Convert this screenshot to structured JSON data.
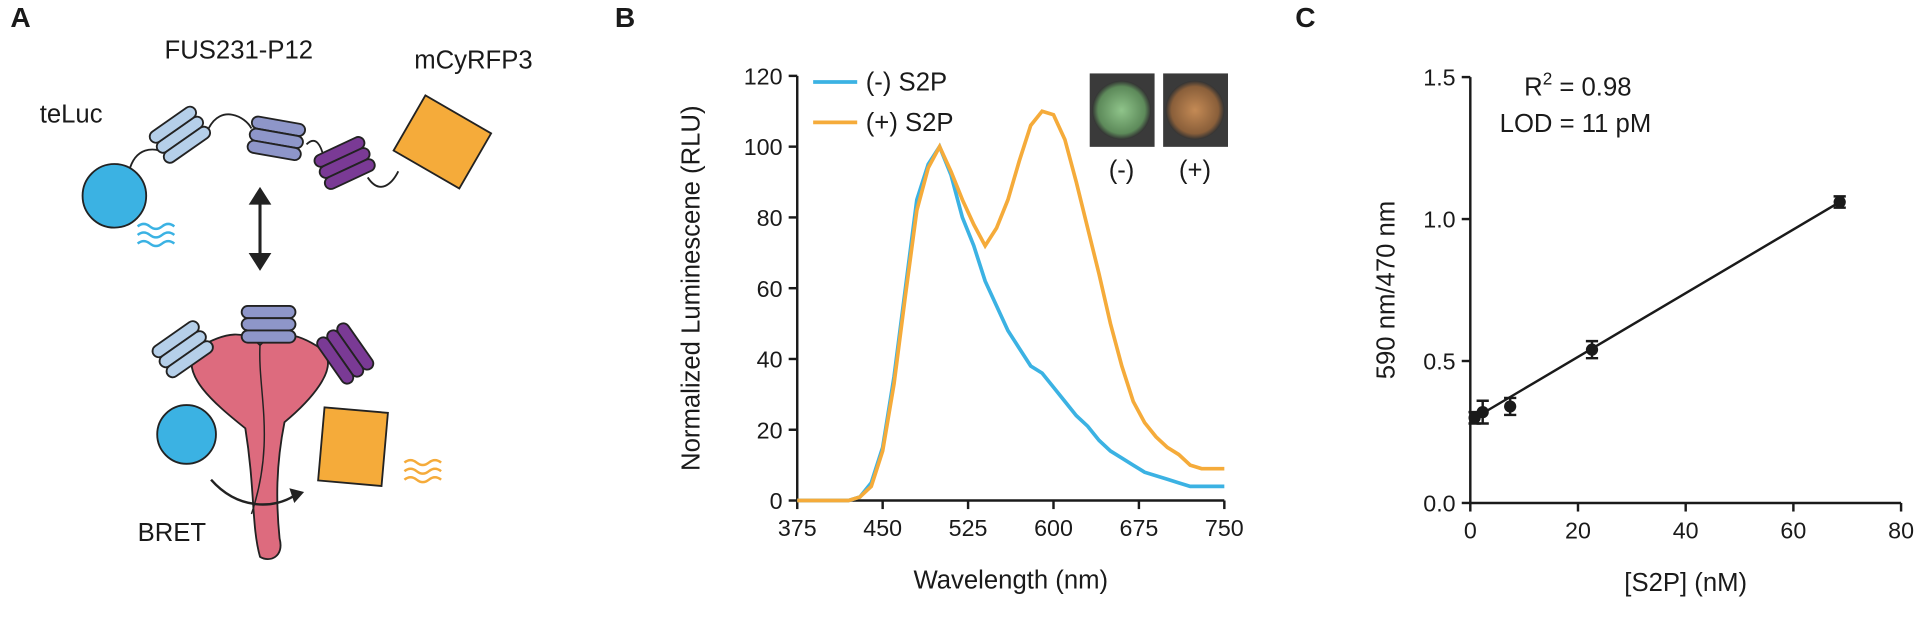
{
  "diagram": {
    "panel_label": "A",
    "labels": [
      "FUS231-P12",
      "mCyRFP3",
      "teLuc",
      "BRET"
    ]
  },
  "chart_data": [
    {
      "type": "line",
      "panel_label": "B",
      "ylabel": "Normalized Luminescene (RLU)",
      "xlabel": "Wavelength (nm)",
      "xlim": [
        375,
        750
      ],
      "xticks": [
        375,
        450,
        525,
        600,
        675,
        750
      ],
      "ylim": [
        0,
        120
      ],
      "yticks": [
        0,
        20,
        40,
        60,
        80,
        100,
        120
      ],
      "x": [
        375,
        380,
        390,
        400,
        410,
        420,
        430,
        440,
        450,
        460,
        470,
        480,
        490,
        500,
        510,
        520,
        530,
        540,
        550,
        560,
        570,
        580,
        590,
        600,
        610,
        620,
        630,
        640,
        650,
        660,
        670,
        680,
        690,
        700,
        710,
        720,
        730,
        740,
        750
      ],
      "series": [
        {
          "name": "(-) S2P",
          "color": "#3bb2e3",
          "values": [
            0,
            0,
            0,
            0,
            0,
            0,
            1,
            5,
            15,
            35,
            60,
            85,
            95,
            100,
            92,
            80,
            72,
            62,
            55,
            48,
            43,
            38,
            36,
            32,
            28,
            24,
            21,
            17,
            14,
            12,
            10,
            8,
            7,
            6,
            5,
            4,
            4,
            4,
            4
          ]
        },
        {
          "name": "(+) S2P",
          "color": "#f5ab3a",
          "values": [
            0,
            0,
            0,
            0,
            0,
            0,
            1,
            4,
            14,
            33,
            58,
            82,
            94,
            100,
            93,
            85,
            78,
            72,
            77,
            85,
            96,
            106,
            110,
            109,
            102,
            90,
            77,
            64,
            50,
            38,
            28,
            22,
            18,
            15,
            13,
            10,
            9,
            9,
            9
          ]
        }
      ],
      "annotations": [
        "(-)",
        "(+)"
      ]
    },
    {
      "type": "scatter",
      "panel_label": "C",
      "ylabel": "590 nm/470 nm",
      "xlabel": "[S2P] (nM)",
      "xlim": [
        0,
        80
      ],
      "xticks": [
        0,
        20,
        40,
        60,
        80
      ],
      "ylim": [
        0,
        1.5
      ],
      "yticks": [
        {
          "value": 0,
          "label": "0.0"
        },
        0.5,
        {
          "value": 1,
          "label": "1.0"
        },
        1.5
      ],
      "x": [
        0.8,
        2.3,
        7.4,
        22.6,
        68.6
      ],
      "y": [
        0.3,
        0.32,
        0.34,
        0.54,
        1.06
      ],
      "errors": [
        0.02,
        0.04,
        0.03,
        0.03,
        0.02
      ],
      "color": "#1a1a1a",
      "fit": {
        "x": [
          0,
          68.6
        ],
        "y": [
          0.29,
          1.06
        ]
      },
      "r2": {
        "base": "R",
        "sup": "2",
        "rest": " = 0.98"
      },
      "lod": "LOD = 11 pM"
    }
  ]
}
